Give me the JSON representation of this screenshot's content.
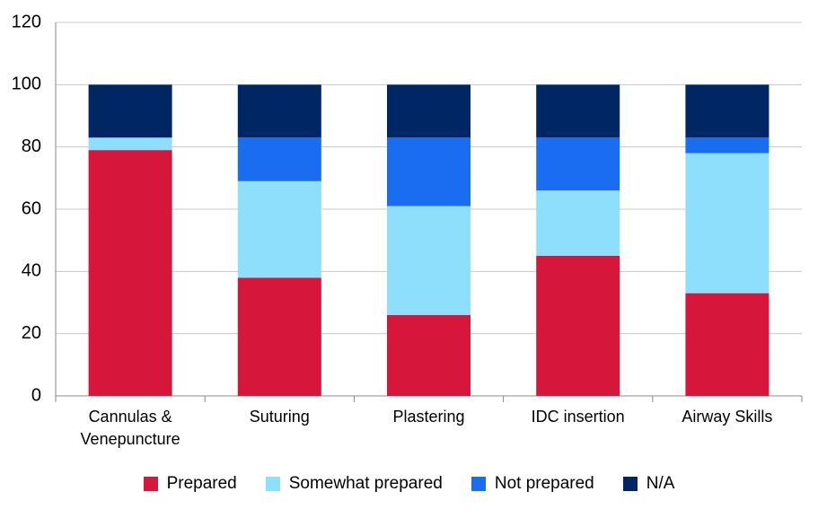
{
  "chart_data": {
    "type": "stacked-bar",
    "categories": [
      "Cannulas & Venepuncture",
      "Suturing",
      "Plastering",
      "IDC insertion",
      "Airway Skills"
    ],
    "series": [
      {
        "name": "Prepared",
        "color": "#d6163a",
        "values": [
          79,
          38,
          26,
          45,
          33
        ]
      },
      {
        "name": "Somewhat prepared",
        "color": "#8ddffb",
        "values": [
          4,
          31,
          35,
          21,
          45
        ]
      },
      {
        "name": "Not prepared",
        "color": "#1a6cf0",
        "values": [
          0,
          14,
          22,
          17,
          5
        ]
      },
      {
        "name": "N/A",
        "color": "#002663",
        "values": [
          17,
          17,
          17,
          17,
          17
        ]
      }
    ],
    "ylim": [
      0,
      120
    ],
    "yticks": [
      0,
      20,
      40,
      60,
      80,
      100,
      120
    ],
    "grid": true
  }
}
